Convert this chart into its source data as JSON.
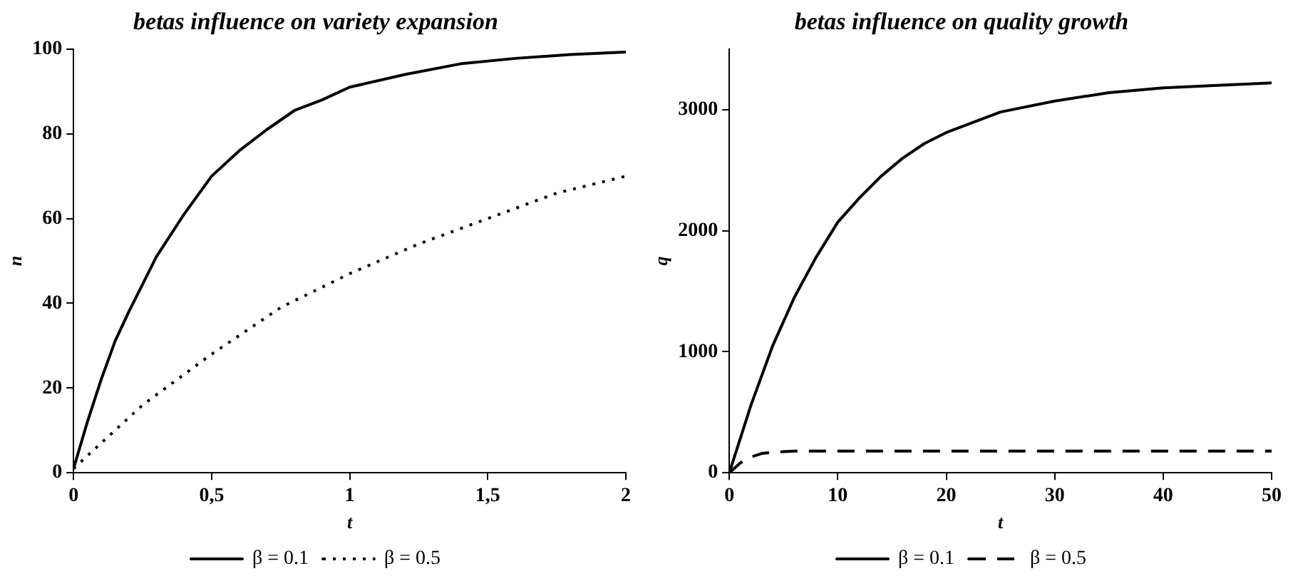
{
  "chart_data": [
    {
      "type": "line",
      "title": "betas influence on variety expansion",
      "xlabel": "t",
      "ylabel": "n",
      "xlim": [
        0,
        2
      ],
      "ylim": [
        0,
        100
      ],
      "xticks": [
        0,
        {
          "value": 0.5,
          "label": "0,5"
        },
        1,
        {
          "value": 1.5,
          "label": "1,5"
        },
        2
      ],
      "yticks": [
        0,
        20,
        40,
        60,
        80,
        100
      ],
      "grid": false,
      "legend": "bottom",
      "marker": "none",
      "series": [
        {
          "name": "β = 0.1",
          "color": "#000000",
          "line_style": "solid",
          "x": [
            0,
            0.05,
            0.1,
            0.15,
            0.2,
            0.3,
            0.4,
            0.5,
            0.6,
            0.7,
            0.8,
            0.9,
            1,
            1.2,
            1.4,
            1.6,
            1.8,
            2
          ],
          "values": [
            1,
            12,
            22,
            31,
            38,
            51,
            61,
            70,
            76,
            81,
            85.5,
            88,
            91,
            94,
            96.5,
            97.8,
            98.7,
            99.3
          ]
        },
        {
          "name": "β = 0.5",
          "color": "#000000",
          "line_style": "dotted",
          "x": [
            0,
            0.25,
            0.5,
            0.75,
            1,
            1.25,
            1.5,
            1.75,
            2
          ],
          "values": [
            1,
            16,
            28,
            39,
            47,
            54,
            60,
            66,
            70
          ]
        }
      ]
    },
    {
      "type": "line",
      "title": "betas influence on quality growth",
      "xlabel": "t",
      "ylabel": "q",
      "xlim": [
        0,
        50
      ],
      "ylim": [
        0,
        3500
      ],
      "xticks": [
        0,
        10,
        20,
        30,
        40,
        50
      ],
      "yticks": [
        0,
        1000,
        2000,
        3000
      ],
      "grid": false,
      "legend": "bottom",
      "marker": "none",
      "series": [
        {
          "name": "β = 0.1",
          "color": "#000000",
          "line_style": "solid",
          "x": [
            0,
            2,
            4,
            6,
            8,
            10,
            12,
            14,
            16,
            18,
            20,
            25,
            30,
            35,
            40,
            45,
            50
          ],
          "values": [
            0,
            560,
            1050,
            1450,
            1780,
            2070,
            2270,
            2450,
            2600,
            2720,
            2810,
            2980,
            3070,
            3140,
            3180,
            3200,
            3220
          ]
        },
        {
          "name": "β = 0.5",
          "color": "#000000",
          "line_style": "dashed",
          "x": [
            0,
            1,
            2,
            3,
            4,
            6,
            10,
            20,
            30,
            40,
            50
          ],
          "values": [
            0,
            80,
            130,
            160,
            170,
            180,
            180,
            180,
            180,
            180,
            180
          ]
        }
      ]
    }
  ]
}
